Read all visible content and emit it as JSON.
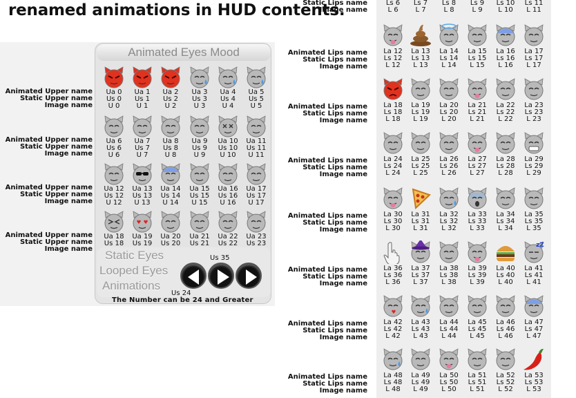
{
  "title": "renamed animations in HUD contents.",
  "top_right_partial": {
    "label": "Static Lips name",
    "label2": "Image name",
    "cells": [
      {
        "a": "Ls 6",
        "b": "L 6"
      },
      {
        "a": "Ls 7",
        "b": "L 7"
      },
      {
        "a": "Ls 8",
        "b": "L 8"
      },
      {
        "a": "Ls 9",
        "b": "L 9"
      },
      {
        "a": "Ls 10",
        "b": "L 10"
      },
      {
        "a": "Ls 11",
        "b": "L 11"
      }
    ]
  },
  "eyes_panel": {
    "title": "Animated Eyes Mood",
    "row_labels": [
      "Animated Upper name",
      "Static Upper name",
      "Image name"
    ],
    "rows": [
      {
        "cells": [
          {
            "icon": "devil-red-icon",
            "ua": "Ua 0",
            "us": "Us 0",
            "u": "U 0"
          },
          {
            "icon": "devil-red-icon",
            "ua": "Ua 1",
            "us": "Us 1",
            "u": "U 1"
          },
          {
            "icon": "devil-red-icon",
            "ua": "Ua 2",
            "us": "Us 2",
            "u": "U 2"
          },
          {
            "icon": "tear-cat-icon",
            "ua": "Ua 3",
            "us": "Us 3",
            "u": "U 3"
          },
          {
            "icon": "tear-cat-icon",
            "ua": "Ua 4",
            "us": "Us 4",
            "u": "U 4"
          },
          {
            "icon": "tear-cat-icon",
            "ua": "Ua 5",
            "us": "Us 5",
            "u": "U 5"
          }
        ]
      },
      {
        "cells": [
          {
            "icon": "grey-cat-icon",
            "ua": "Ua 6",
            "us": "Us 6",
            "u": "U 6"
          },
          {
            "icon": "grey-cat-icon",
            "ua": "Ua 7",
            "us": "Us 7",
            "u": "U 7"
          },
          {
            "icon": "grey-cat-icon",
            "ua": "Ua 8",
            "us": "Us 8",
            "u": "U 8"
          },
          {
            "icon": "grey-cat-icon",
            "ua": "Ua 9",
            "us": "Us 9",
            "u": "U 9"
          },
          {
            "icon": "x-eyes-cat-icon",
            "ua": "Ua 10",
            "us": "Us 10",
            "u": "U 10"
          },
          {
            "icon": "grey-cat-icon",
            "ua": "Ua 11",
            "us": "Us 11",
            "u": "U 11"
          }
        ]
      },
      {
        "cells": [
          {
            "icon": "grey-cat-icon",
            "ua": "Ua 12",
            "us": "Us 12",
            "u": "U 12"
          },
          {
            "icon": "sunglasses-cat-icon",
            "ua": "Ua 13",
            "us": "Us 13",
            "u": "U 13"
          },
          {
            "icon": "blue-cat-icon",
            "ua": "Ua 14",
            "us": "Us 14",
            "u": "U 14"
          },
          {
            "icon": "grey-cat-icon",
            "ua": "Ua 15",
            "us": "Us 15",
            "u": "U 15"
          },
          {
            "icon": "grey-cat-icon",
            "ua": "Ua 16",
            "us": "Us 16",
            "u": "U 16"
          },
          {
            "icon": "grey-cat-icon",
            "ua": "Ua 17",
            "us": "Us 17",
            "u": "U 17"
          }
        ]
      },
      {
        "cells": [
          {
            "icon": "squint-cat-icon",
            "ua": "Ua 18",
            "us": "Us 18",
            "u": "U 18"
          },
          {
            "icon": "heart-eyes-cat-icon",
            "ua": "Ua 19",
            "us": "Us 19",
            "u": "U 19"
          },
          {
            "icon": "grey-cat-icon",
            "ua": "Ua 20",
            "us": "Us 20",
            "u": "U 20"
          },
          {
            "icon": "grey-cat-icon",
            "ua": "Ua 21",
            "us": "Us 21",
            "u": "U 21"
          },
          {
            "icon": "grey-cat-icon",
            "ua": "Ua 22",
            "us": "Us 22",
            "u": "U 22"
          },
          {
            "icon": "grey-cat-icon",
            "ua": "Ua 23",
            "us": "Us 23",
            "u": "U 23"
          }
        ]
      }
    ],
    "static_lines": [
      "Static Eyes",
      "Looped Eyes",
      "Animations"
    ],
    "us35": "Us 35",
    "us24": "Us 24",
    "note": "The Number can be 24 and Greater"
  },
  "lips": {
    "row_labels": [
      "Animated Lips name",
      "Static Lips name",
      "Image name"
    ],
    "rows": [
      {
        "cells": [
          {
            "icon": "tongue-cat-icon",
            "la": "La 12",
            "ls": "Ls 12",
            "l": "L 12"
          },
          {
            "icon": "poop-icon",
            "la": "La 13",
            "ls": "Ls 13",
            "l": "L 13"
          },
          {
            "icon": "halo-cat-icon",
            "la": "La 14",
            "ls": "Ls 14",
            "l": "L 14"
          },
          {
            "icon": "grey-cat-icon",
            "la": "La 15",
            "ls": "Ls 15",
            "l": "L 15"
          },
          {
            "icon": "blue-cat-icon",
            "la": "La 16",
            "ls": "Ls 16",
            "l": "L 16"
          },
          {
            "icon": "grey-cat-icon",
            "la": "La 17",
            "ls": "Ls 17",
            "l": "L 17"
          }
        ]
      },
      {
        "cells": [
          {
            "icon": "angry-red-icon",
            "la": "La 18",
            "ls": "Ls 18",
            "l": "L 18"
          },
          {
            "icon": "grey-cat-icon",
            "la": "La 19",
            "ls": "Ls 19",
            "l": "L 19"
          },
          {
            "icon": "grey-cat-icon",
            "la": "La 20",
            "ls": "Ls 20",
            "l": "L 20"
          },
          {
            "icon": "tongue-cat-icon",
            "la": "La 21",
            "ls": "Ls 21",
            "l": "L 21"
          },
          {
            "icon": "grey-cat-icon",
            "la": "La 22",
            "ls": "Ls 22",
            "l": "L 22"
          },
          {
            "icon": "grey-cat-icon",
            "la": "La 23",
            "ls": "Ls 23",
            "l": "L 23"
          }
        ]
      },
      {
        "cells": [
          {
            "icon": "grey-cat-icon",
            "la": "La 24",
            "ls": "Ls 24",
            "l": "L 24"
          },
          {
            "icon": "grey-cat-icon",
            "la": "La 25",
            "ls": "Ls 25",
            "l": "L 25"
          },
          {
            "icon": "grey-cat-icon",
            "la": "La 26",
            "ls": "Ls 26",
            "l": "L 26"
          },
          {
            "icon": "tongue-cat-icon",
            "la": "La 27",
            "ls": "Ls 27",
            "l": "L 27"
          },
          {
            "icon": "grey-cat-icon",
            "la": "La 28",
            "ls": "Ls 28",
            "l": "L 28"
          },
          {
            "icon": "teeth-cat-icon",
            "la": "La 29",
            "ls": "Ls 29",
            "l": "L 29"
          }
        ]
      },
      {
        "cells": [
          {
            "icon": "tongue-cat-icon",
            "la": "La 30",
            "ls": "Ls 30",
            "l": "L 30"
          },
          {
            "icon": "pizza-icon",
            "la": "La 31",
            "ls": "Ls 31",
            "l": "L 31"
          },
          {
            "icon": "tear-cat-icon",
            "la": "La 32",
            "ls": "Ls 32",
            "l": "L 32"
          },
          {
            "icon": "scared-cat-icon",
            "la": "La 33",
            "ls": "Ls 33",
            "l": "L 33"
          },
          {
            "icon": "grey-cat-icon",
            "la": "La 34",
            "ls": "Ls 34",
            "l": "L 34"
          },
          {
            "icon": "grey-cat-icon",
            "la": "La 35",
            "ls": "Ls 35",
            "l": "L 35"
          }
        ]
      },
      {
        "cells": [
          {
            "icon": "hand-icon",
            "la": "La 36",
            "ls": "Ls 36",
            "l": "L 36"
          },
          {
            "icon": "witch-hat-cat-icon",
            "la": "La 37",
            "ls": "Ls 37",
            "l": "L 37"
          },
          {
            "icon": "grey-cat-icon",
            "la": "La 38",
            "ls": "Ls 38",
            "l": "L 38"
          },
          {
            "icon": "tongue-cat-icon",
            "la": "La 39",
            "ls": "Ls 39",
            "l": "L 39"
          },
          {
            "icon": "burger-icon",
            "la": "La 40",
            "ls": "Ls 40",
            "l": "L 40"
          },
          {
            "icon": "sleep-cat-icon",
            "la": "La 41",
            "ls": "Ls 41",
            "l": "L 41"
          }
        ]
      },
      {
        "cells": [
          {
            "icon": "kiss-cat-icon",
            "la": "La 42",
            "ls": "Ls 42",
            "l": "L 42"
          },
          {
            "icon": "tear-cat-icon",
            "la": "La 43",
            "ls": "Ls 43",
            "l": "L 43"
          },
          {
            "icon": "grey-cat-icon",
            "la": "La 44",
            "ls": "Ls 44",
            "l": "L 44"
          },
          {
            "icon": "grey-cat-icon",
            "la": "La 45",
            "ls": "Ls 45",
            "l": "L 45"
          },
          {
            "icon": "grey-cat-icon",
            "la": "La 46",
            "ls": "Ls 46",
            "l": "L 46"
          },
          {
            "icon": "blue-cat-icon",
            "la": "La 47",
            "ls": "Ls 47",
            "l": "L 47"
          }
        ]
      },
      {
        "cells": [
          {
            "icon": "tear-cat-icon",
            "la": "La 48",
            "ls": "Ls 48",
            "l": "L 48"
          },
          {
            "icon": "grey-cat-icon",
            "la": "La 49",
            "ls": "Ls 49",
            "l": "L 49"
          },
          {
            "icon": "tongue-cat-icon",
            "la": "La 50",
            "ls": "Ls 50",
            "l": "L 50"
          },
          {
            "icon": "grey-cat-icon",
            "la": "La 51",
            "ls": "Ls 51",
            "l": "L 51"
          },
          {
            "icon": "grey-cat-icon",
            "la": "La 52",
            "ls": "Ls 52",
            "l": "L 52"
          },
          {
            "icon": "chili-pepper-icon",
            "la": "La 53",
            "ls": "Ls 53",
            "l": "L 53"
          }
        ]
      }
    ]
  },
  "colors": {
    "grey_cat": "#b9b9b9",
    "red": "#e0321e",
    "blue": "#7d9fe6",
    "brown": "#8b5a2b"
  }
}
